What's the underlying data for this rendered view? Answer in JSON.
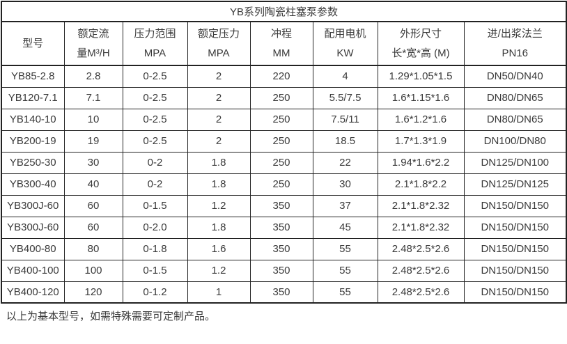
{
  "table": {
    "title": "YB系列陶瓷柱塞泵参数",
    "columns": [
      {
        "line1": "型号",
        "line2": ""
      },
      {
        "line1": "额定流",
        "line2": "量M³/H"
      },
      {
        "line1": "压力范围",
        "line2": "MPA"
      },
      {
        "line1": "额定压力",
        "line2": "MPA"
      },
      {
        "line1": "冲程",
        "line2": "MM"
      },
      {
        "line1": "配用电机",
        "line2": "KW"
      },
      {
        "line1": "外形尺寸",
        "line2": "长*宽*高 (M)"
      },
      {
        "line1": "进/出浆法兰",
        "line2": "PN16"
      }
    ],
    "rows": [
      [
        "YB85-2.8",
        "2.8",
        "0-2.5",
        "2",
        "220",
        "4",
        "1.29*1.05*1.5",
        "DN50/DN40"
      ],
      [
        "YB120-7.1",
        "7.1",
        "0-2.5",
        "2",
        "250",
        "5.5/7.5",
        "1.6*1.15*1.6",
        "DN80/DN65"
      ],
      [
        "YB140-10",
        "10",
        "0-2.5",
        "2",
        "250",
        "7.5/11",
        "1.6*1.2*1.6",
        "DN80/DN65"
      ],
      [
        "YB200-19",
        "19",
        "0-2.5",
        "2",
        "250",
        "18.5",
        "1.7*1.3*1.9",
        "DN100/DN80"
      ],
      [
        "YB250-30",
        "30",
        "0-2",
        "1.8",
        "250",
        "22",
        "1.94*1.6*2.2",
        "DN125/DN100"
      ],
      [
        "YB300-40",
        "40",
        "0-2",
        "1.8",
        "250",
        "30",
        "2.1*1.8*2.2",
        "DN125/DN125"
      ],
      [
        "YB300J-60",
        "60",
        "0-1.5",
        "1.2",
        "350",
        "37",
        "2.1*1.8*2.32",
        "DN150/DN150"
      ],
      [
        "YB300J-60",
        "60",
        "0-2.0",
        "1.8",
        "350",
        "45",
        "2.1*1.8*2.32",
        "DN150/DN150"
      ],
      [
        "YB400-80",
        "80",
        "0-1.8",
        "1.6",
        "350",
        "55",
        "2.48*2.5*2.6",
        "DN150/DN150"
      ],
      [
        "YB400-100",
        "100",
        "0-1.5",
        "1.2",
        "350",
        "55",
        "2.48*2.5*2.6",
        "DN150/DN150"
      ],
      [
        "YB400-120",
        "120",
        "0-1.2",
        "1",
        "350",
        "55",
        "2.48*2.5*2.6",
        "DN150/DN150"
      ]
    ],
    "footnote": "以上为基本型号，如需特殊需要可定制产品。"
  },
  "colors": {
    "border": "#222222",
    "text": "#3a3a3a",
    "background": "#ffffff"
  }
}
